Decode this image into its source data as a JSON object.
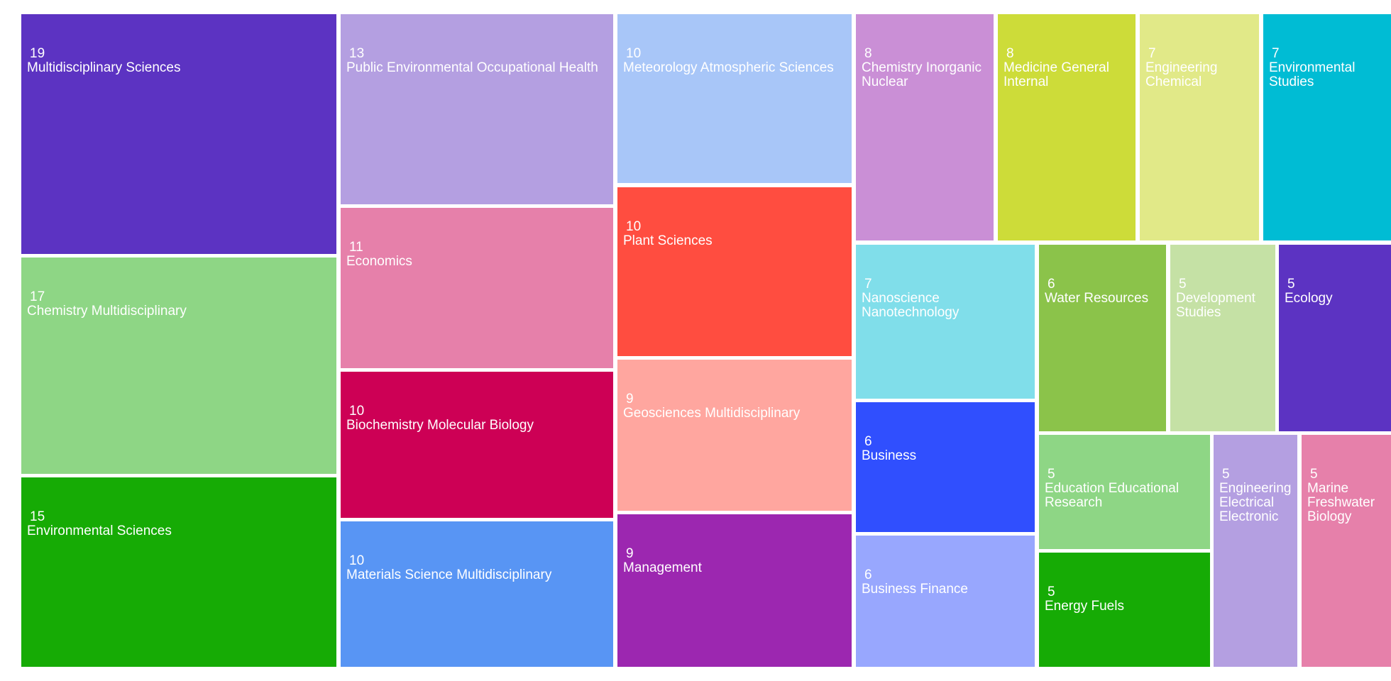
{
  "chart_data": {
    "type": "treemap",
    "title": "",
    "items": [
      {
        "label": "Multidisciplinary Sciences",
        "value": 19,
        "color": "#5c33c2"
      },
      {
        "label": "Chemistry Multidisciplinary",
        "value": 17,
        "color": "#8ed685"
      },
      {
        "label": "Environmental Sciences",
        "value": 15,
        "color": "#16ab05"
      },
      {
        "label": "Public Environmental Occupational Health",
        "value": 13,
        "color": "#b49fe1"
      },
      {
        "label": "Economics",
        "value": 11,
        "color": "#e680aa"
      },
      {
        "label": "Biochemistry Molecular Biology",
        "value": 10,
        "color": "#cd0055"
      },
      {
        "label": "Materials Science Multidisciplinary",
        "value": 10,
        "color": "#5895f4"
      },
      {
        "label": "Meteorology Atmospheric Sciences",
        "value": 10,
        "color": "#a8c6f8"
      },
      {
        "label": "Plant Sciences",
        "value": 10,
        "color": "#ff4d40"
      },
      {
        "label": "Geosciences Multidisciplinary",
        "value": 9,
        "color": "#ffa69f"
      },
      {
        "label": "Management",
        "value": 9,
        "color": "#9c27b0"
      },
      {
        "label": "Chemistry Inorganic Nuclear",
        "value": 8,
        "color": "#ca8fd6"
      },
      {
        "label": "Medicine General Internal",
        "value": 8,
        "color": "#cddc39"
      },
      {
        "label": "Engineering Chemical",
        "value": 7,
        "color": "#e1e988"
      },
      {
        "label": "Environmental Studies",
        "value": 7,
        "color": "#00bcd4"
      },
      {
        "label": "Nanoscience Nanotechnology",
        "value": 7,
        "color": "#80deea"
      },
      {
        "label": "Business",
        "value": 6,
        "color": "#304ffe"
      },
      {
        "label": "Business Finance",
        "value": 6,
        "color": "#98a7fe"
      },
      {
        "label": "Water Resources",
        "value": 6,
        "color": "#8bc34a"
      },
      {
        "label": "Development Studies",
        "value": 5,
        "color": "#c5e1a5"
      },
      {
        "label": "Ecology",
        "value": 5,
        "color": "#5c33c2"
      },
      {
        "label": "Education Educational Research",
        "value": 5,
        "color": "#8ed685"
      },
      {
        "label": "Energy Fuels",
        "value": 5,
        "color": "#16ab05"
      },
      {
        "label": "Engineering Electrical Electronic",
        "value": 5,
        "color": "#b49fe1"
      },
      {
        "label": "Marine Freshwater Biology",
        "value": 5,
        "color": "#e680aa"
      }
    ]
  }
}
